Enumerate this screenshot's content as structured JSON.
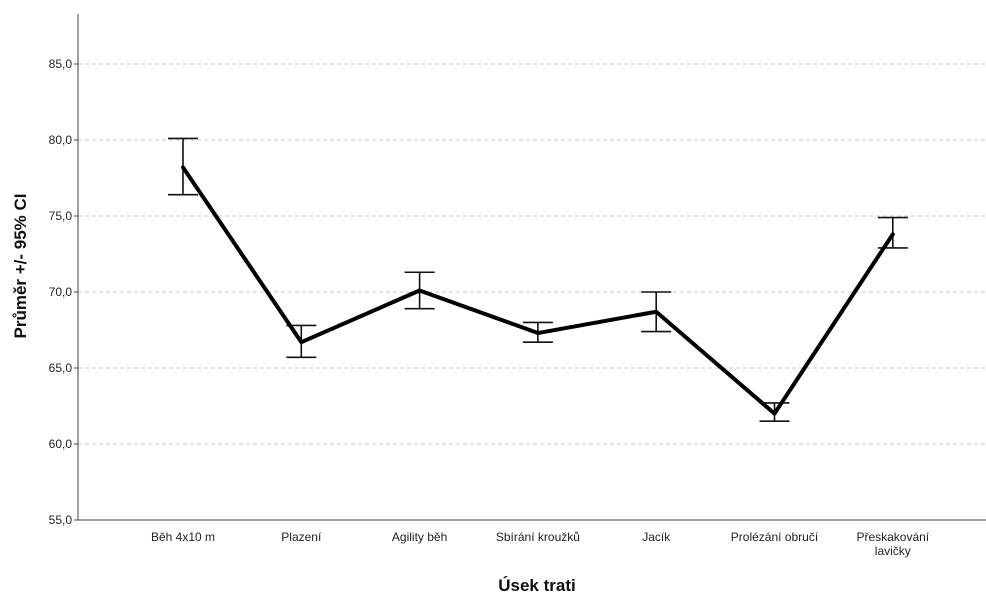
{
  "chart_data": {
    "type": "line",
    "xlabel": "Úsek trati",
    "ylabel": "Průměr +/- 95% CI",
    "ylim": [
      55,
      88
    ],
    "yticks": [
      "55,0",
      "60,0",
      "65,0",
      "70,0",
      "75,0",
      "80,0",
      "85,0"
    ],
    "ytick_values": [
      55,
      60,
      65,
      70,
      75,
      80,
      85
    ],
    "grid": true,
    "categories": [
      [
        "Běh 4x10 m"
      ],
      [
        "Plazení"
      ],
      [
        "Agility běh"
      ],
      [
        "Sbírání kroužků"
      ],
      [
        "Jacík"
      ],
      [
        "Prolézání obručí"
      ],
      [
        "Přeskakování",
        "lavičky"
      ]
    ],
    "series": [
      {
        "mean": [
          78.2,
          66.7,
          70.1,
          67.3,
          68.7,
          62.0,
          73.8
        ],
        "ci_low": [
          76.4,
          65.7,
          68.9,
          66.7,
          67.4,
          61.5,
          72.9
        ],
        "ci_high": [
          80.1,
          67.8,
          71.3,
          68.0,
          70.0,
          62.7,
          74.9
        ]
      }
    ],
    "colors": {
      "line": "#000000",
      "grid": "#c9c9c9",
      "axis": "#444444"
    }
  }
}
